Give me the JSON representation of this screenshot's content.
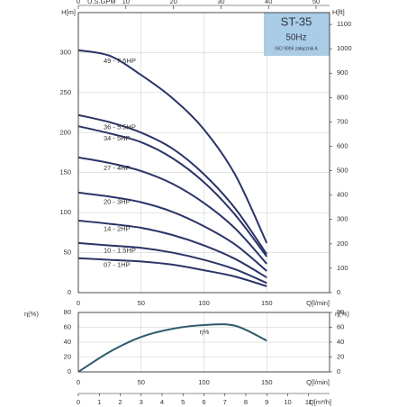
{
  "chart_data": [
    {
      "type": "line",
      "y_label": "H[m]",
      "x2_label": "U.S.GPM",
      "y2_label": "H[ft]",
      "x_label": "Q[l/min]",
      "annotations": [
        "ST-35",
        "50Hz",
        "ISO 9906 załącznik A"
      ],
      "x": [
        0,
        25,
        50,
        75,
        100,
        125,
        150
      ],
      "series": [
        {
          "name": "49 - 7.5HP",
          "color": "#2b3468",
          "values": [
            303,
            296,
            272,
            243,
            204,
            147,
            62
          ]
        },
        {
          "name": "36 - 5.5HP",
          "color": "#2b3468",
          "values": [
            222,
            213,
            200,
            180,
            148,
            105,
            48
          ]
        },
        {
          "name": "34 - 5HP",
          "color": "#2b3468",
          "values": [
            208,
            199,
            188,
            168,
            138,
            97,
            45
          ]
        },
        {
          "name": "27 - 4HP",
          "color": "#2b3468",
          "values": [
            169,
            162,
            152,
            136,
            112,
            80,
            36
          ]
        },
        {
          "name": "20 - 3HP",
          "color": "#2b3468",
          "values": [
            125,
            120,
            113,
            101,
            83,
            60,
            27
          ]
        },
        {
          "name": "14 - 2HP",
          "color": "#2b3468",
          "values": [
            90,
            86,
            81,
            72,
            59,
            42,
            19
          ]
        },
        {
          "name": "10 - 1.5HP",
          "color": "#2b3468",
          "values": [
            62,
            59,
            56,
            50,
            41,
            29,
            12
          ]
        },
        {
          "name": "07 - 1HP",
          "color": "#2b3468",
          "values": [
            43,
            41,
            39,
            35,
            28,
            20,
            8
          ]
        }
      ],
      "xlim": [
        0,
        200
      ],
      "xticks": [
        0,
        50,
        100,
        150
      ],
      "ylim": [
        0,
        350
      ],
      "yticks": [
        0,
        50,
        100,
        150,
        200,
        250,
        300
      ],
      "x2lim": [
        0,
        52.84
      ],
      "x2ticks": [
        0,
        10,
        20,
        30,
        40,
        50
      ],
      "y2lim": [
        0,
        1148.3
      ],
      "y2ticks": [
        0,
        100,
        200,
        300,
        400,
        500,
        600,
        700,
        800,
        900,
        1000,
        1100
      ],
      "grid": true
    },
    {
      "type": "line",
      "y_label": "η(%)",
      "y2_label": "η(%)",
      "x_label": "Q[l/min]",
      "x2_label": "Q[m³/h]",
      "x": [
        0,
        25,
        50,
        75,
        100,
        125,
        150
      ],
      "series": [
        {
          "name": "η%",
          "color": "#2f5b6b",
          "values": [
            0,
            27,
            47,
            58,
            63,
            62,
            42
          ]
        }
      ],
      "xlim": [
        0,
        200
      ],
      "xticks": [
        0,
        50,
        100,
        150
      ],
      "ylim": [
        0,
        80
      ],
      "yticks": [
        0,
        20,
        40,
        60,
        80
      ],
      "y2lim": [
        0,
        80
      ],
      "y2ticks": [
        0,
        20,
        40,
        60,
        80
      ],
      "x2lim": [
        0,
        12
      ],
      "x2ticks": [
        0,
        1,
        2,
        3,
        4,
        5,
        6,
        7,
        8,
        9,
        10,
        11
      ],
      "grid": true
    }
  ]
}
